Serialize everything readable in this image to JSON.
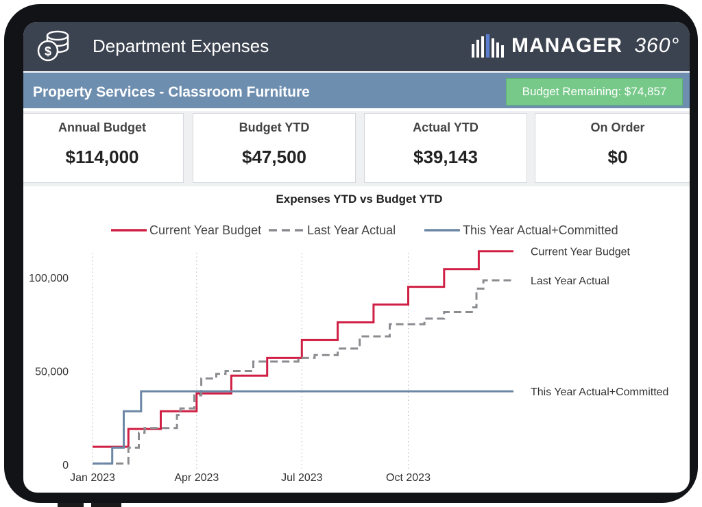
{
  "header": {
    "title": "Department Expenses",
    "icon": "money-stack-icon",
    "logo_text": "MANAGER",
    "logo_suffix": "360°"
  },
  "subheader": {
    "title": "Property Services - Classroom Furniture",
    "budget_remaining": "Budget Remaining: $74,857"
  },
  "kpis": [
    {
      "label": "Annual Budget",
      "value": "$114,000"
    },
    {
      "label": "Budget YTD",
      "value": "$47,500"
    },
    {
      "label": "Actual YTD",
      "value": "$39,143"
    },
    {
      "label": "On Order",
      "value": "$0"
    }
  ],
  "chart_data": {
    "type": "line",
    "title": "Expenses YTD vs Budget YTD",
    "xlabel": "",
    "ylabel": "",
    "x_ticks": [
      "Jan 2023",
      "Apr 2023",
      "Jul 2023",
      "Oct 2023"
    ],
    "y_ticks": [
      "0",
      "50,000",
      "100,000"
    ],
    "ylim": [
      0,
      115000
    ],
    "xlim_months": [
      "Jan 2023",
      "Dec 2023"
    ],
    "grid": "vertical dotted",
    "legend_position": "top",
    "series": [
      {
        "name": "Current Year Budget",
        "color": "#d01f44",
        "style": "solid",
        "end_label": "Current Year Budget",
        "points": [
          [
            "2023-01-01",
            9500
          ],
          [
            "2023-02-01",
            9500
          ],
          [
            "2023-02-01",
            19000
          ],
          [
            "2023-03-01",
            19000
          ],
          [
            "2023-03-01",
            28500
          ],
          [
            "2023-04-01",
            28500
          ],
          [
            "2023-04-01",
            38000
          ],
          [
            "2023-05-01",
            38000
          ],
          [
            "2023-05-01",
            47500
          ],
          [
            "2023-06-01",
            47500
          ],
          [
            "2023-06-01",
            57000
          ],
          [
            "2023-07-01",
            57000
          ],
          [
            "2023-07-01",
            66500
          ],
          [
            "2023-08-01",
            66500
          ],
          [
            "2023-08-01",
            76000
          ],
          [
            "2023-09-01",
            76000
          ],
          [
            "2023-09-01",
            85500
          ],
          [
            "2023-10-01",
            85500
          ],
          [
            "2023-10-01",
            95000
          ],
          [
            "2023-11-01",
            95000
          ],
          [
            "2023-11-01",
            104500
          ],
          [
            "2023-12-01",
            104500
          ],
          [
            "2023-12-01",
            114000
          ],
          [
            "2023-12-31",
            114000
          ]
        ]
      },
      {
        "name": "Last Year Actual",
        "color": "#8a8c90",
        "style": "dashed",
        "end_label": "Last Year Actual",
        "points": [
          [
            "2023-01-01",
            500
          ],
          [
            "2023-02-01",
            500
          ],
          [
            "2023-02-01",
            9000
          ],
          [
            "2023-02-10",
            9000
          ],
          [
            "2023-02-10",
            17000
          ],
          [
            "2023-02-15",
            17000
          ],
          [
            "2023-02-15",
            19500
          ],
          [
            "2023-03-15",
            19500
          ],
          [
            "2023-03-15",
            26500
          ],
          [
            "2023-03-18",
            26500
          ],
          [
            "2023-03-18",
            30000
          ],
          [
            "2023-03-30",
            30000
          ],
          [
            "2023-03-30",
            37000
          ],
          [
            "2023-04-05",
            37000
          ],
          [
            "2023-04-05",
            46000
          ],
          [
            "2023-04-18",
            46000
          ],
          [
            "2023-04-18",
            48500
          ],
          [
            "2023-04-26",
            48500
          ],
          [
            "2023-04-26",
            50000
          ],
          [
            "2023-05-20",
            50000
          ],
          [
            "2023-05-20",
            55000
          ],
          [
            "2023-06-28",
            55000
          ],
          [
            "2023-06-28",
            57000
          ],
          [
            "2023-07-12",
            57000
          ],
          [
            "2023-07-12",
            58500
          ],
          [
            "2023-08-01",
            58500
          ],
          [
            "2023-08-01",
            62000
          ],
          [
            "2023-08-20",
            62000
          ],
          [
            "2023-08-20",
            68500
          ],
          [
            "2023-09-15",
            68500
          ],
          [
            "2023-09-15",
            75000
          ],
          [
            "2023-10-15",
            75000
          ],
          [
            "2023-10-15",
            78000
          ],
          [
            "2023-11-01",
            78000
          ],
          [
            "2023-11-01",
            81500
          ],
          [
            "2023-11-25",
            81500
          ],
          [
            "2023-11-25",
            84000
          ],
          [
            "2023-11-29",
            84000
          ],
          [
            "2023-11-29",
            94000
          ],
          [
            "2023-12-05",
            94000
          ],
          [
            "2023-12-05",
            98500
          ],
          [
            "2023-12-31",
            98500
          ]
        ]
      },
      {
        "name": "This Year Actual+Committed",
        "color": "#6b87a5",
        "style": "solid",
        "end_label": "This Year Actual+Committed",
        "points": [
          [
            "2023-01-01",
            500
          ],
          [
            "2023-01-18",
            500
          ],
          [
            "2023-01-18",
            9000
          ],
          [
            "2023-01-28",
            9000
          ],
          [
            "2023-01-28",
            28500
          ],
          [
            "2023-02-12",
            28500
          ],
          [
            "2023-02-12",
            39143
          ],
          [
            "2023-12-31",
            39143
          ]
        ]
      }
    ]
  }
}
